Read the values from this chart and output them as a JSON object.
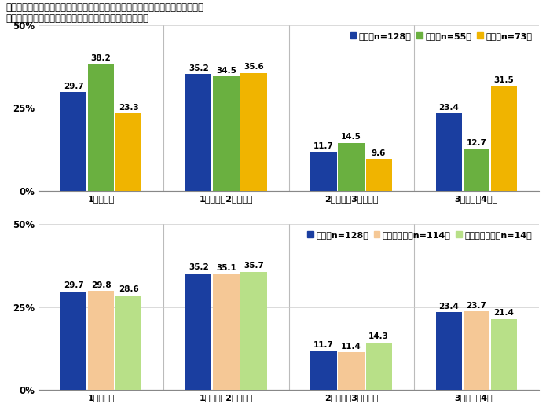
{
  "title1": "自身またはパートナーが実際に取得した産後パパ育休の期間　［単一回答形式］",
  "title2": "対象：自身またはパートナーが産後パパ育休を取得した人",
  "categories": [
    "1週間未満",
    "1週間から2週間未満",
    "2週間から3週間未満",
    "3週間から4週間"
  ],
  "top_legend": [
    {
      "label": "全体［n=128］",
      "color": "#1a3ea0"
    },
    {
      "label": "男性［n=55］",
      "color": "#6ab040"
    },
    {
      "label": "女性［n=73］",
      "color": "#f0b400"
    }
  ],
  "bottom_legend": [
    {
      "label": "全体［n=128］",
      "color": "#1a3ea0"
    },
    {
      "label": "正規雇用者［n=114］",
      "color": "#f5c896"
    },
    {
      "label": "非正規雇用者［n=14］",
      "color": "#b8e088"
    }
  ],
  "top_data": {
    "全体": [
      29.7,
      35.2,
      11.7,
      23.4
    ],
    "男性": [
      38.2,
      34.5,
      14.5,
      12.7
    ],
    "女性": [
      23.3,
      35.6,
      9.6,
      31.5
    ]
  },
  "bottom_data": {
    "全体": [
      29.7,
      35.2,
      11.7,
      23.4
    ],
    "正規雇用者": [
      29.8,
      35.1,
      11.4,
      23.7
    ],
    "非正規雇用者": [
      28.6,
      35.7,
      14.3,
      21.4
    ]
  },
  "top_colors": [
    "#1a3ea0",
    "#6ab040",
    "#f0b400"
  ],
  "bottom_colors": [
    "#1a3ea0",
    "#f5c896",
    "#b8e088"
  ],
  "ylim": [
    0,
    50
  ],
  "yticks": [
    0,
    25,
    50
  ],
  "ytick_labels": [
    "0%",
    "25%",
    "50%"
  ],
  "bar_width": 0.22,
  "bg_color": "#ffffff",
  "title_fontsize": 8.5,
  "label_fontsize": 8.0,
  "tick_fontsize": 8.5,
  "legend_fontsize": 8.0,
  "value_fontsize": 7.5
}
